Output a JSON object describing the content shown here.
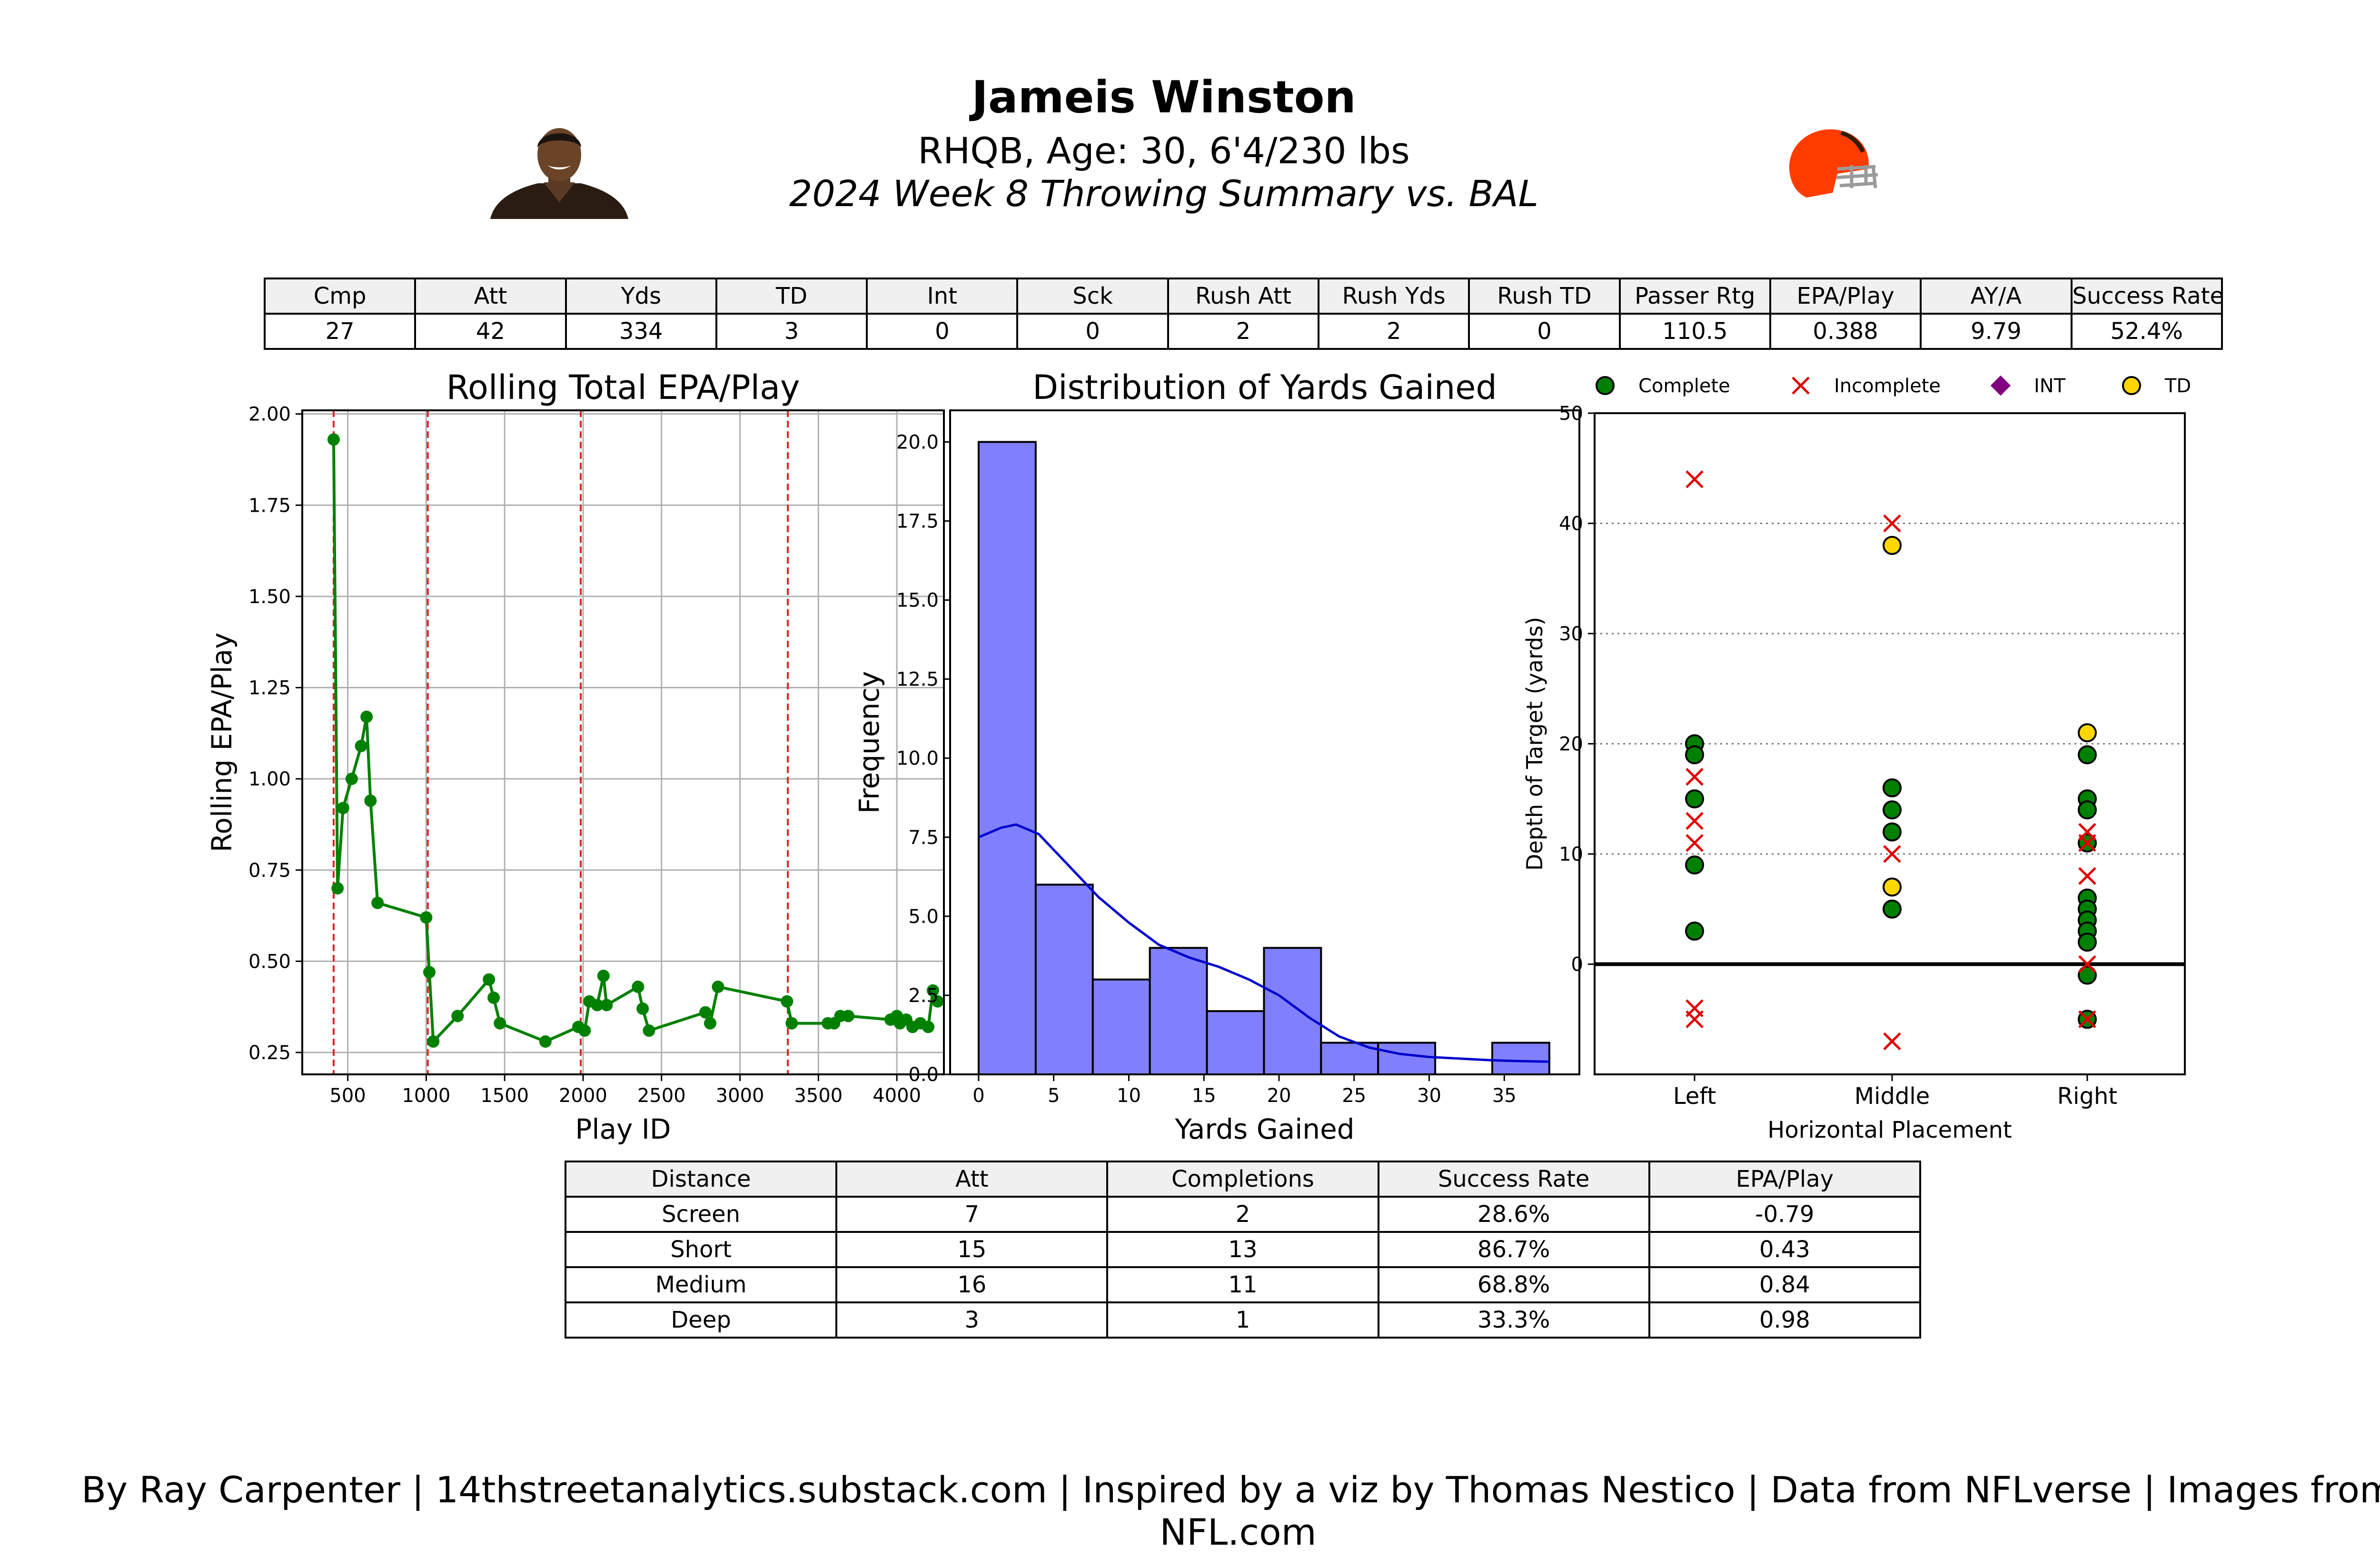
{
  "header": {
    "title": "Jameis Winston",
    "subtitle": "RHQB, Age: 30, 6'4/230 lbs",
    "subtitle2": "2024 Week 8 Throwing Summary vs. BAL"
  },
  "summary_table": {
    "headers": [
      "Cmp",
      "Att",
      "Yds",
      "TD",
      "Int",
      "Sck",
      "Rush Att",
      "Rush Yds",
      "Rush TD",
      "Passer Rtg",
      "EPA/Play",
      "AY/A",
      "Success Rate"
    ],
    "values": [
      "27",
      "42",
      "334",
      "3",
      "0",
      "0",
      "2",
      "2",
      "0",
      "110.5",
      "0.388",
      "9.79",
      "52.4%"
    ]
  },
  "depth_table": {
    "headers": [
      "Distance",
      "Att",
      "Completions",
      "Success Rate",
      "EPA/Play"
    ],
    "rows": [
      [
        "Screen",
        "7",
        "2",
        "28.6%",
        "-0.79"
      ],
      [
        "Short",
        "15",
        "13",
        "86.7%",
        "0.43"
      ],
      [
        "Medium",
        "16",
        "11",
        "68.8%",
        "0.84"
      ],
      [
        "Deep",
        "3",
        "1",
        "33.3%",
        "0.98"
      ]
    ]
  },
  "footer": "By Ray Carpenter | 14thstreetanalytics.substack.com | Inspired by a viz by Thomas Nestico | Data from NFLverse | Images from NFL.com",
  "colors": {
    "line": "#008000",
    "vline": "#d62728",
    "hist_bar": "#8080ff",
    "kde": "#0000cc",
    "complete": "#008000",
    "incomplete": "#e00000",
    "int": "#800080",
    "td": "#ffd700",
    "logo_orange": "#ff3c00",
    "logo_brown": "#311d00"
  },
  "chart_data": [
    {
      "type": "line",
      "title": "Rolling Total EPA/Play",
      "xlabel": "Play ID",
      "ylabel": "Rolling EPA/Play",
      "xlim": [
        210,
        4300
      ],
      "ylim": [
        0.19,
        2.01
      ],
      "xticks": [
        500,
        1000,
        1500,
        2000,
        2500,
        3000,
        3500,
        4000
      ],
      "yticks": [
        0.25,
        0.5,
        0.75,
        1.0,
        1.25,
        1.5,
        1.75,
        2.0
      ],
      "ytick_labels": [
        "0.25",
        "0.50",
        "0.75",
        "1.00",
        "1.25",
        "1.50",
        "1.75",
        "2.00"
      ],
      "grid": true,
      "points": [
        [
          410,
          1.93
        ],
        [
          435,
          0.7
        ],
        [
          470,
          0.92
        ],
        [
          525,
          1.0
        ],
        [
          585,
          1.09
        ],
        [
          620,
          1.17
        ],
        [
          645,
          0.94
        ],
        [
          690,
          0.66
        ],
        [
          1000,
          0.62
        ],
        [
          1020,
          0.47
        ],
        [
          1045,
          0.28
        ],
        [
          1200,
          0.35
        ],
        [
          1400,
          0.45
        ],
        [
          1430,
          0.4
        ],
        [
          1470,
          0.33
        ],
        [
          1760,
          0.28
        ],
        [
          1970,
          0.32
        ],
        [
          2010,
          0.31
        ],
        [
          2040,
          0.39
        ],
        [
          2090,
          0.38
        ],
        [
          2130,
          0.46
        ],
        [
          2150,
          0.38
        ],
        [
          2350,
          0.43
        ],
        [
          2380,
          0.37
        ],
        [
          2420,
          0.31
        ],
        [
          2780,
          0.36
        ],
        [
          2810,
          0.33
        ],
        [
          2860,
          0.43
        ],
        [
          3300,
          0.39
        ],
        [
          3330,
          0.33
        ],
        [
          3560,
          0.33
        ],
        [
          3600,
          0.33
        ],
        [
          3640,
          0.35
        ],
        [
          3690,
          0.35
        ],
        [
          3960,
          0.34
        ],
        [
          4000,
          0.35
        ],
        [
          4020,
          0.33
        ],
        [
          4060,
          0.34
        ],
        [
          4100,
          0.32
        ],
        [
          4150,
          0.33
        ],
        [
          4200,
          0.32
        ],
        [
          4230,
          0.42
        ],
        [
          4260,
          0.39
        ]
      ],
      "quarter_lines": [
        410,
        1010,
        1985,
        3305
      ]
    },
    {
      "type": "bar",
      "title": "Distribution of Yards Gained",
      "xlabel": "Yards Gained",
      "ylabel": "Frequency",
      "xlim": [
        -1.9,
        40
      ],
      "ylim": [
        0,
        21
      ],
      "xticks": [
        0,
        5,
        10,
        15,
        20,
        25,
        30,
        35
      ],
      "yticks": [
        0.0,
        2.5,
        5.0,
        7.5,
        10.0,
        12.5,
        15.0,
        17.5,
        20.0
      ],
      "ytick_labels": [
        "0.0",
        "2.5",
        "5.0",
        "7.5",
        "10.0",
        "12.5",
        "15.0",
        "17.5",
        "20.0"
      ],
      "bin_width": 3.8,
      "bin_start": 0,
      "values": [
        20,
        6,
        3,
        4,
        2,
        4,
        1,
        1,
        0,
        1
      ],
      "kde": [
        [
          0,
          7.5
        ],
        [
          1.5,
          7.8
        ],
        [
          2.5,
          7.9
        ],
        [
          4,
          7.6
        ],
        [
          6,
          6.6
        ],
        [
          8,
          5.6
        ],
        [
          10,
          4.8
        ],
        [
          12,
          4.1
        ],
        [
          14,
          3.7
        ],
        [
          16,
          3.4
        ],
        [
          18,
          3.0
        ],
        [
          20,
          2.5
        ],
        [
          22,
          1.8
        ],
        [
          24,
          1.2
        ],
        [
          26,
          0.85
        ],
        [
          28,
          0.65
        ],
        [
          30,
          0.55
        ],
        [
          32,
          0.5
        ],
        [
          34,
          0.45
        ],
        [
          36,
          0.42
        ],
        [
          38,
          0.4
        ]
      ]
    },
    {
      "type": "scatter",
      "xlabel": "Horizontal Placement",
      "ylabel": "Depth of Target (yards)",
      "categories": [
        "Left",
        "Middle",
        "Right"
      ],
      "ylim": [
        -10,
        50
      ],
      "yticks": [
        0,
        10,
        20,
        30,
        40,
        50
      ],
      "grid": "horizontal-dotted",
      "legend": [
        "Complete",
        "Incomplete",
        "INT",
        "TD"
      ],
      "legend_placement": "top",
      "complete": [
        [
          0,
          20
        ],
        [
          0,
          19
        ],
        [
          0,
          15
        ],
        [
          0,
          9
        ],
        [
          0,
          3
        ],
        [
          1,
          16
        ],
        [
          1,
          14
        ],
        [
          1,
          12
        ],
        [
          1,
          5
        ],
        [
          2,
          19
        ],
        [
          2,
          15
        ],
        [
          2,
          14
        ],
        [
          2,
          11
        ],
        [
          2,
          6
        ],
        [
          2,
          5
        ],
        [
          2,
          4
        ],
        [
          2,
          3
        ],
        [
          2,
          2
        ],
        [
          2,
          -1
        ],
        [
          2,
          -5
        ]
      ],
      "incomplete": [
        [
          0,
          44
        ],
        [
          0,
          17
        ],
        [
          0,
          13
        ],
        [
          0,
          11
        ],
        [
          0,
          -4
        ],
        [
          0,
          -5
        ],
        [
          1,
          40
        ],
        [
          1,
          10
        ],
        [
          1,
          -7
        ],
        [
          2,
          12
        ],
        [
          2,
          11
        ],
        [
          2,
          8
        ],
        [
          2,
          0
        ],
        [
          2,
          -5
        ]
      ],
      "int": [],
      "td": [
        [
          1,
          38
        ],
        [
          1,
          7
        ],
        [
          2,
          21
        ]
      ]
    }
  ]
}
